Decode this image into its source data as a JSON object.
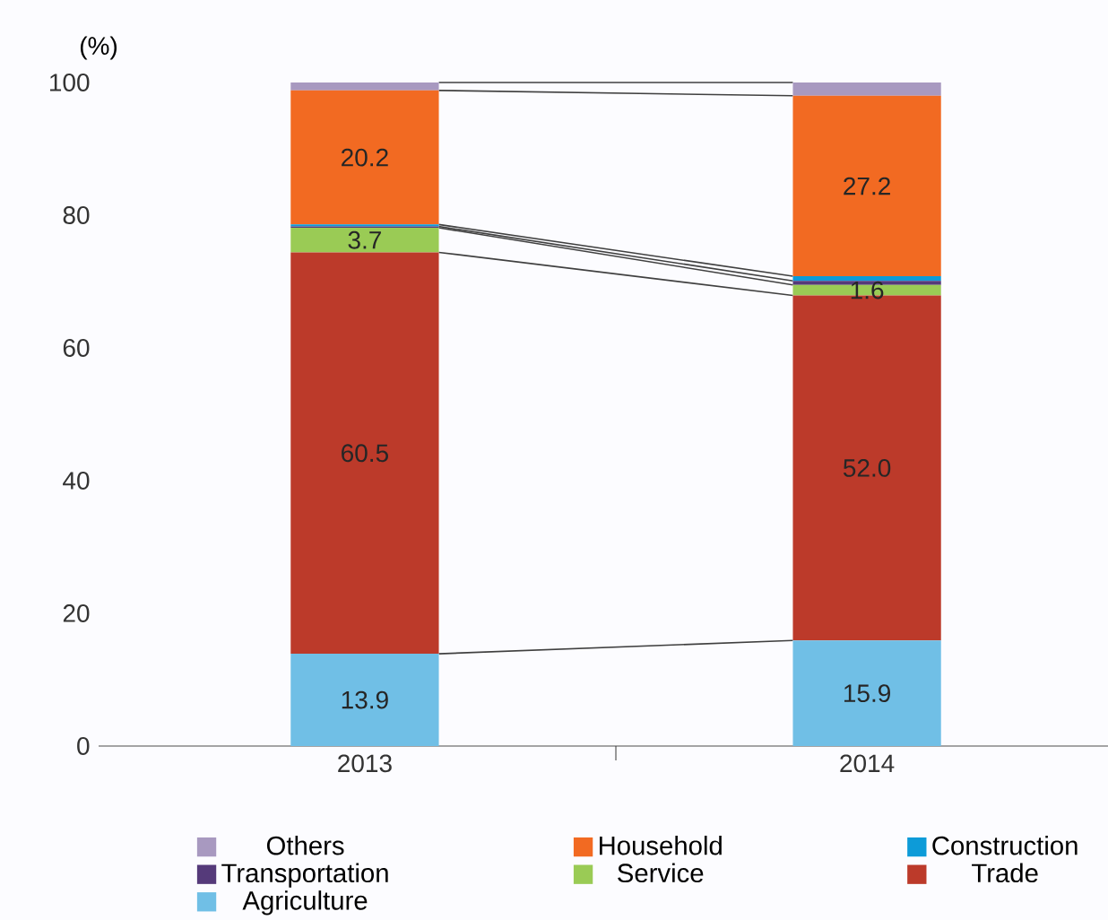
{
  "chart_data": {
    "type": "bar",
    "stacked": true,
    "ylabel": "(%)",
    "categories": [
      "2013",
      "2014"
    ],
    "series": [
      {
        "name": "Agriculture",
        "color": "#70bfe6",
        "values": [
          13.9,
          15.9
        ],
        "value_labels": [
          "13.9",
          "15.9"
        ]
      },
      {
        "name": "Trade",
        "color": "#bc3a2a",
        "values": [
          60.5,
          52.0
        ],
        "value_labels": [
          "60.5",
          "52.0"
        ]
      },
      {
        "name": "Service",
        "color": "#9acb55",
        "values": [
          3.7,
          1.6
        ],
        "value_labels": [
          "3.7",
          "1.6"
        ]
      },
      {
        "name": "Transportation",
        "color": "#553a7a",
        "values": [
          0.2,
          0.6
        ]
      },
      {
        "name": "Construction",
        "color": "#0d9bd8",
        "values": [
          0.3,
          0.7
        ]
      },
      {
        "name": "Household",
        "color": "#f26a22",
        "values": [
          20.2,
          27.2
        ],
        "value_labels": [
          "20.2",
          "27.2"
        ]
      },
      {
        "name": "Others",
        "color": "#a899c0",
        "values": [
          1.2,
          2.0
        ]
      }
    ],
    "ylim": [
      0,
      100
    ],
    "yticks": [
      0,
      20,
      40,
      60,
      80,
      100
    ],
    "grid": false,
    "legend": "bottom"
  }
}
